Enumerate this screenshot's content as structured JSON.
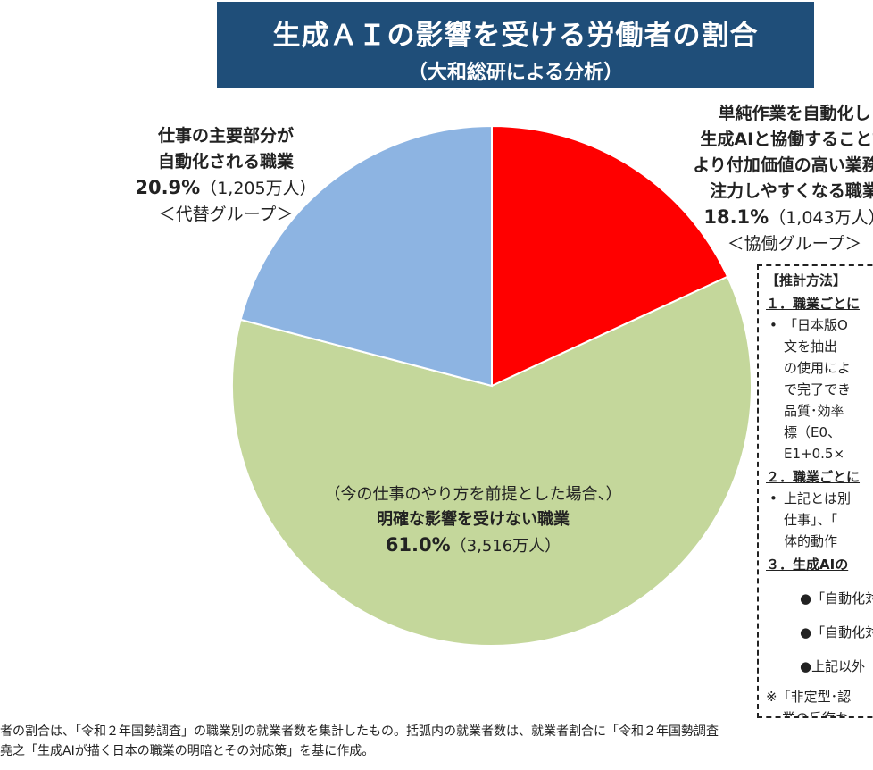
{
  "header": {
    "title": "生成ＡＩの影響を受ける労働者の割合",
    "subtitle": "（大和総研による分析）"
  },
  "chart_data": {
    "type": "pie",
    "slices": [
      {
        "label": "単純作業を自動化し生成AIと協働することでより付加価値の高い業務に注力しやすくなる職業",
        "value": 18.1,
        "count": "1,043万人",
        "group": "協働グループ",
        "color": "#ff0000"
      },
      {
        "label": "明確な影響を受けない職業",
        "value": 61.0,
        "count": "3,516万人",
        "group": "",
        "color": "#c4d79b"
      },
      {
        "label": "仕事の主要部分が自動化される職業",
        "value": 20.9,
        "count": "1,205万人",
        "group": "代替グループ",
        "color": "#8db4e2"
      }
    ]
  },
  "labels": {
    "left": {
      "line1": "仕事の主要部分が",
      "line2": "自動化される職業",
      "pct": "20.9%",
      "count": "（1,205万人）",
      "group": "＜代替グループ＞"
    },
    "right": {
      "line1": "単純作業を自動化し",
      "line2": "生成AIと協働することで",
      "line3": "より付加価値の高い業務に",
      "line4": "注力しやすくなる職業",
      "pct": "18.1%",
      "count": "（1,043万人）",
      "group": "＜協働グループ＞"
    },
    "middle": {
      "line1": "（今の仕事のやり方を前提とした場合、）",
      "line2": "明確な影響を受けない職業",
      "pct": "61.0%",
      "count": "（3,516万人）"
    }
  },
  "method": {
    "heading": "【推計方法】",
    "sec1": "１．職業ごとに",
    "sec1_lines": [
      "「日本版O",
      "文を抽出",
      "の使用によ",
      "で完了でき",
      "品質･効率",
      "標（E0、",
      "E1+0.5×"
    ],
    "sec2": "２．職業ごとに",
    "sec2_lines": [
      "上記とは別",
      "仕事」、「",
      "体的動作"
    ],
    "sec3": "３．生成AIの",
    "bullets": [
      "●「自動化対",
      "●「自動化対",
      "●上記以外"
    ],
    "note1": "※「非定型･認",
    "note2": "業の反復な"
  },
  "footnote": {
    "line1": "者の割合は、「令和２年国勢調査」の職業別の就業者数を集計したもの。括弧内の就業者数は、就業者割合に「令和２年国勢調査",
    "line2": "堯之「生成AIが描く日本の職業の明暗とその対応策」を基に作成。"
  }
}
